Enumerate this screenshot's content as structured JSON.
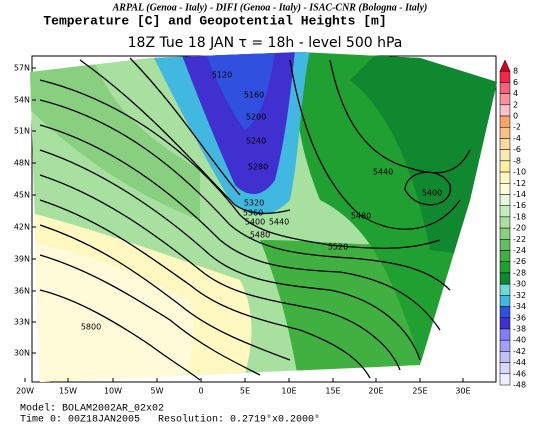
{
  "header": {
    "institutions": "ARPAL (Genoa - Italy)  -  DIFI (Genoa - Italy)  -  ISAC-CNR (Bologna - Italy)",
    "title": "Temperature [C] and Geopotential Heights [m]",
    "subtitle": "18Z Tue 18 JAN   τ = 18h   -   level 500 hPa"
  },
  "map": {
    "lat_labels": [
      "57N",
      "54N",
      "51N",
      "48N",
      "45N",
      "42N",
      "39N",
      "36N",
      "33N",
      "30N"
    ],
    "lon_labels": [
      "20W",
      "15W",
      "10W",
      "5W",
      "0",
      "5E",
      "10E",
      "15E",
      "20E",
      "25E",
      "30E"
    ],
    "contour_labels": [
      5120,
      5160,
      5200,
      5240,
      5280,
      5320,
      5360,
      5400,
      5440,
      5480,
      5520,
      5440,
      5400,
      5480,
      5800
    ]
  },
  "colorbar": {
    "levels": [
      8,
      6,
      4,
      2,
      0,
      -2,
      -4,
      -6,
      -8,
      -10,
      -12,
      -14,
      -16,
      -18,
      -20,
      -22,
      -24,
      -26,
      -28,
      -30,
      -32,
      -34,
      -36,
      -38,
      -40,
      -42,
      -44,
      -46,
      -48
    ],
    "colors": [
      "#d7001a",
      "#f0284a",
      "#f5607a",
      "#f990a0",
      "#fcc0c8",
      "#f9a36a",
      "#fcc080",
      "#fdd9a0",
      "#fde8b0",
      "#fff0a0",
      "#fff8c0",
      "#fffbd8",
      "#e8f6e0",
      "#c8ecc0",
      "#a8e0a0",
      "#88d080",
      "#60c060",
      "#40b040",
      "#20a030",
      "#108830",
      "#70d8d8",
      "#40b8e0",
      "#3050e0",
      "#4030d0",
      "#8080ff",
      "#a0a0ff",
      "#c0c0ff",
      "#d8d8ff",
      "#eeeeff"
    ]
  },
  "footer": {
    "model": "Model: BOLAM2002AR_02x02",
    "time": "Time 0: 00Z18JAN2005",
    "resolution": "Resolution: 0.2719°x0.2000°"
  }
}
